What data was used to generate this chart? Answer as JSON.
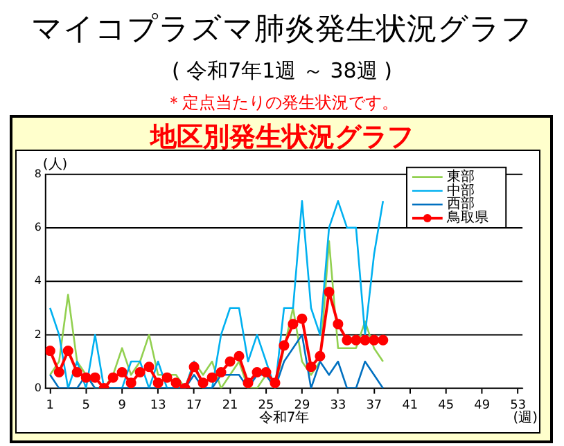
{
  "chart_data": {
    "type": "line",
    "title": "マイコプラズマ肺炎発生状況グラフ",
    "subtitle": "( 令和7年1週 ～ 38週 )",
    "annotations": [
      "＊定点当たりの発生状況です。",
      "地区別発生状況グラフ",
      "令和7年"
    ],
    "ylabel": "(人)",
    "xlabel": "(週)",
    "x": [
      1,
      2,
      3,
      4,
      5,
      6,
      7,
      8,
      9,
      10,
      11,
      12,
      13,
      14,
      15,
      16,
      17,
      18,
      19,
      20,
      21,
      22,
      23,
      24,
      25,
      26,
      27,
      28,
      29,
      30,
      31,
      32,
      33,
      34,
      35,
      36,
      37,
      38
    ],
    "series": [
      {
        "name": "東部",
        "color": "#92d050",
        "marker": "none",
        "values": [
          0.5,
          1,
          3.5,
          1,
          0.5,
          0,
          0,
          0.5,
          1.5,
          0.5,
          1,
          2,
          0.5,
          0.5,
          0.5,
          0,
          1,
          0.5,
          1,
          0,
          0.5,
          1,
          0,
          0,
          0.5,
          0,
          1.5,
          3,
          1,
          0.5,
          1,
          5.5,
          1.5,
          1.5,
          1.5,
          2.5,
          1.5,
          1
        ]
      },
      {
        "name": "中部",
        "color": "#00b0f0",
        "marker": "none",
        "values": [
          3,
          2,
          0,
          1,
          0,
          2,
          0,
          0,
          0,
          1,
          1,
          0,
          1,
          0,
          0,
          0,
          1,
          0,
          0,
          2,
          3,
          3,
          1,
          2,
          1,
          0,
          3,
          3,
          7,
          3,
          2,
          6,
          7,
          6,
          6,
          2,
          5,
          7
        ]
      },
      {
        "name": "西部",
        "color": "#0070c0",
        "marker": "none",
        "values": [
          0.5,
          0,
          0,
          0,
          0.5,
          0,
          0,
          0,
          0,
          0,
          0,
          0,
          0,
          0,
          0,
          0,
          0.5,
          0,
          0,
          0.5,
          0.5,
          0.5,
          0,
          0.5,
          0.5,
          0,
          1,
          1.5,
          2,
          0,
          1,
          0.5,
          1,
          0,
          0,
          1,
          0.5,
          0
        ]
      },
      {
        "name": "鳥取県",
        "color": "#ff0000",
        "marker": "circle",
        "values": [
          1.4,
          0.6,
          1.4,
          0.6,
          0.4,
          0.4,
          0,
          0.4,
          0.6,
          0.2,
          0.6,
          0.8,
          0.2,
          0.4,
          0.2,
          0,
          0.8,
          0.2,
          0.4,
          0.6,
          1,
          1.2,
          0.2,
          0.6,
          0.6,
          0.2,
          1.6,
          2.4,
          2.6,
          0.8,
          1.2,
          3.6,
          2.4,
          1.8,
          1.8,
          1.8,
          1.8,
          1.8
        ]
      }
    ],
    "xlim": [
      0.5,
      53.5
    ],
    "xticks": [
      1,
      5,
      9,
      13,
      17,
      21,
      25,
      29,
      33,
      37,
      41,
      45,
      49,
      53
    ],
    "ylim": [
      0,
      8
    ],
    "yticks": [
      0,
      2,
      4,
      6,
      8
    ],
    "grid": "y",
    "legend": "top right",
    "line_style": "solid"
  }
}
